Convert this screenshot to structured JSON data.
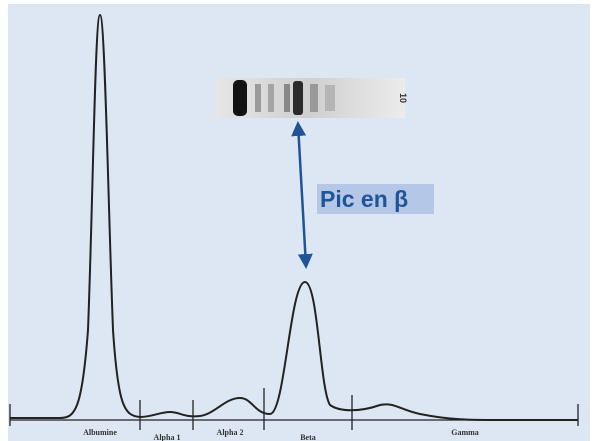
{
  "annotation": "Pic en β",
  "gel_label": "10",
  "fractions": [
    "Albumine",
    "Alpha 1",
    "Alpha 2",
    "Beta",
    "Gamma"
  ]
}
